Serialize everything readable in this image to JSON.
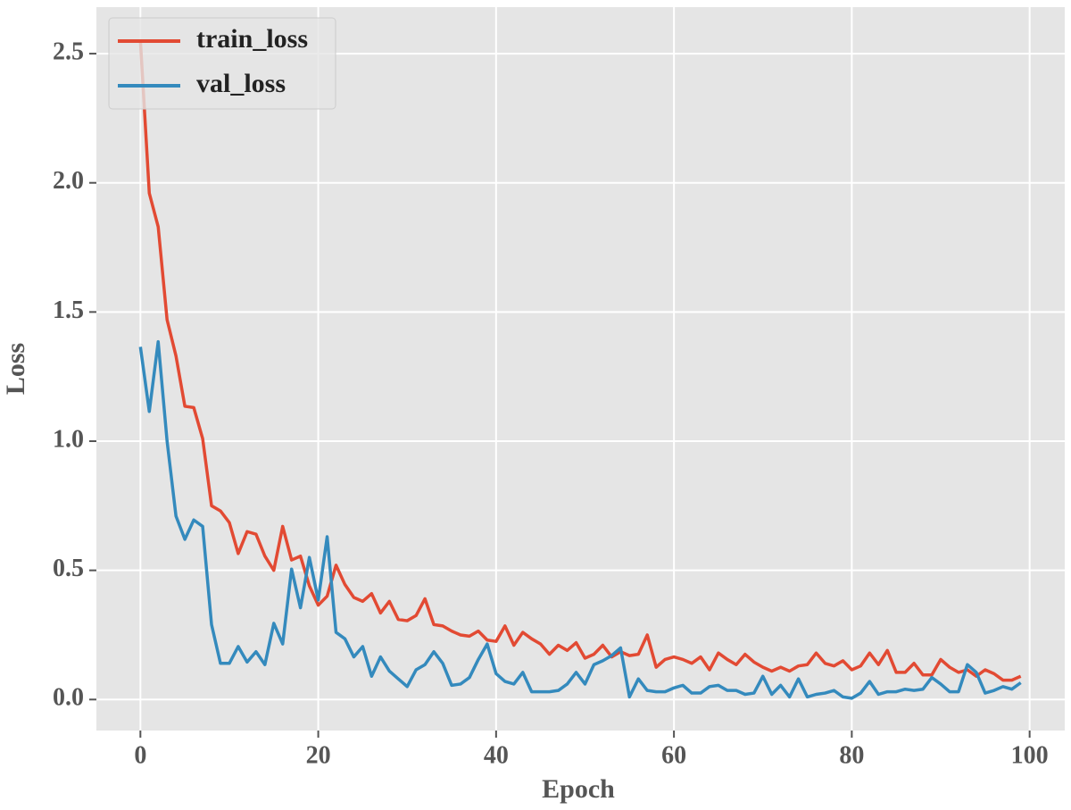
{
  "chart_data": {
    "type": "line",
    "xlabel": "Epoch",
    "ylabel": "Loss",
    "x": [
      0,
      1,
      2,
      3,
      4,
      5,
      6,
      7,
      8,
      9,
      10,
      11,
      12,
      13,
      14,
      15,
      16,
      17,
      18,
      19,
      20,
      21,
      22,
      23,
      24,
      25,
      26,
      27,
      28,
      29,
      30,
      31,
      32,
      33,
      34,
      35,
      36,
      37,
      38,
      39,
      40,
      41,
      42,
      43,
      44,
      45,
      46,
      47,
      48,
      49,
      50,
      51,
      52,
      53,
      54,
      55,
      56,
      57,
      58,
      59,
      60,
      61,
      62,
      63,
      64,
      65,
      66,
      67,
      68,
      69,
      70,
      71,
      72,
      73,
      74,
      75,
      76,
      77,
      78,
      79,
      80,
      81,
      82,
      83,
      84,
      85,
      86,
      87,
      88,
      89,
      90,
      91,
      92,
      93,
      94,
      95,
      96,
      97,
      98,
      99
    ],
    "series": [
      {
        "name": "train_loss",
        "color": "#e24a33",
        "values": [
          2.55,
          1.96,
          1.83,
          1.47,
          1.33,
          1.135,
          1.13,
          1.01,
          0.75,
          0.73,
          0.685,
          0.565,
          0.65,
          0.64,
          0.555,
          0.5,
          0.67,
          0.54,
          0.555,
          0.44,
          0.365,
          0.4,
          0.52,
          0.445,
          0.395,
          0.38,
          0.41,
          0.335,
          0.38,
          0.31,
          0.305,
          0.325,
          0.39,
          0.29,
          0.285,
          0.265,
          0.25,
          0.245,
          0.265,
          0.23,
          0.225,
          0.285,
          0.21,
          0.26,
          0.235,
          0.215,
          0.175,
          0.21,
          0.19,
          0.22,
          0.16,
          0.175,
          0.21,
          0.165,
          0.185,
          0.17,
          0.175,
          0.25,
          0.125,
          0.155,
          0.165,
          0.155,
          0.14,
          0.165,
          0.115,
          0.18,
          0.155,
          0.135,
          0.175,
          0.145,
          0.125,
          0.11,
          0.125,
          0.11,
          0.13,
          0.135,
          0.18,
          0.14,
          0.13,
          0.15,
          0.115,
          0.13,
          0.18,
          0.135,
          0.19,
          0.105,
          0.105,
          0.14,
          0.095,
          0.095,
          0.155,
          0.125,
          0.105,
          0.115,
          0.09,
          0.115,
          0.1,
          0.075,
          0.075,
          0.09
        ]
      },
      {
        "name": "val_loss",
        "color": "#348abd",
        "values": [
          1.365,
          1.115,
          1.385,
          1.0,
          0.71,
          0.62,
          0.695,
          0.67,
          0.29,
          0.14,
          0.14,
          0.205,
          0.145,
          0.185,
          0.135,
          0.295,
          0.215,
          0.505,
          0.355,
          0.55,
          0.385,
          0.63,
          0.26,
          0.235,
          0.165,
          0.205,
          0.09,
          0.165,
          0.11,
          0.08,
          0.05,
          0.115,
          0.135,
          0.185,
          0.14,
          0.055,
          0.06,
          0.085,
          0.155,
          0.215,
          0.1,
          0.07,
          0.06,
          0.105,
          0.03,
          0.03,
          0.03,
          0.035,
          0.06,
          0.105,
          0.06,
          0.135,
          0.15,
          0.17,
          0.2,
          0.01,
          0.08,
          0.035,
          0.03,
          0.03,
          0.045,
          0.055,
          0.025,
          0.025,
          0.05,
          0.055,
          0.035,
          0.035,
          0.02,
          0.025,
          0.09,
          0.02,
          0.055,
          0.01,
          0.08,
          0.01,
          0.02,
          0.025,
          0.035,
          0.01,
          0.005,
          0.025,
          0.07,
          0.02,
          0.03,
          0.03,
          0.04,
          0.035,
          0.04,
          0.085,
          0.06,
          0.03,
          0.03,
          0.135,
          0.105,
          0.025,
          0.035,
          0.05,
          0.04,
          0.065
        ]
      }
    ],
    "xlim": [
      -4.95,
      103.95
    ],
    "ylim": [
      -0.12,
      2.68
    ],
    "xticks": [
      0,
      20,
      40,
      60,
      80,
      100
    ],
    "yticks": [
      {
        "value": 0,
        "label": "0.0"
      },
      0.5,
      {
        "value": 1,
        "label": "1.0"
      },
      1.5,
      {
        "value": 2,
        "label": "2.0"
      },
      2.5
    ],
    "grid": true,
    "legend": "upper-left"
  }
}
